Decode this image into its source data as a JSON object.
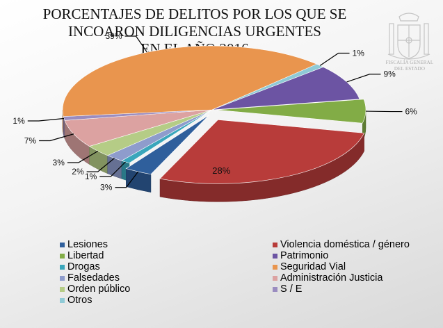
{
  "title": "PORCENTAJES DE DELITOS POR LOS QUE SE\nINCOARON DILIGENCIAS URGENTES\nEN EL AÑO 2016",
  "logo_text": "FISCALÍA GENERAL\nDEL ESTADO",
  "chart_data": {
    "type": "pie",
    "title": "PORCENTAJES DE DELITOS POR LOS QUE SE INCOARON DILIGENCIAS URGENTES EN EL AÑO 2016",
    "legend_position": "bottom",
    "slices": [
      {
        "name": "Violencia doméstica / género",
        "value": 28,
        "label": "28%",
        "color": "#b83c3a"
      },
      {
        "name": "Lesiones",
        "value": 3,
        "label": "3%",
        "color": "#2f5f9c"
      },
      {
        "name": "Drogas",
        "value": 1,
        "label": "1%",
        "color": "#3aa6bb"
      },
      {
        "name": "Falsedades",
        "value": 2,
        "label": "2%",
        "color": "#8e9ccc"
      },
      {
        "name": "Orden público",
        "value": 3,
        "label": "3%",
        "color": "#b5cc86"
      },
      {
        "name": "Administración Justicia",
        "value": 7,
        "label": "7%",
        "color": "#dca2a1"
      },
      {
        "name": "S / E",
        "value": 1,
        "label": "1%",
        "color": "#9a8cc0"
      },
      {
        "name": "Seguridad Vial",
        "value": 39,
        "label": "39%",
        "color": "#e9954e"
      },
      {
        "name": "Otros",
        "value": 1,
        "label": "1%",
        "color": "#8fcad6"
      },
      {
        "name": "Patrimonio",
        "value": 9,
        "label": "9%",
        "color": "#6c54a3"
      },
      {
        "name": "Libertad",
        "value": 6,
        "label": "6%",
        "color": "#82ac46"
      }
    ],
    "legend": [
      {
        "name": "Lesiones",
        "color": "#2f5f9c"
      },
      {
        "name": "Violencia doméstica / género",
        "color": "#b83c3a"
      },
      {
        "name": "Libertad",
        "color": "#82ac46"
      },
      {
        "name": "Patrimonio",
        "color": "#6c54a3"
      },
      {
        "name": "Drogas",
        "color": "#3aa6bb"
      },
      {
        "name": "Seguridad Vial",
        "color": "#e9954e"
      },
      {
        "name": "Falsedades",
        "color": "#8e9ccc"
      },
      {
        "name": "Administración Justicia",
        "color": "#dca2a1"
      },
      {
        "name": "Orden público",
        "color": "#b5cc86"
      },
      {
        "name": "S / E",
        "color": "#9a8cc0"
      },
      {
        "name": "Otros",
        "color": "#8fcad6"
      }
    ]
  }
}
